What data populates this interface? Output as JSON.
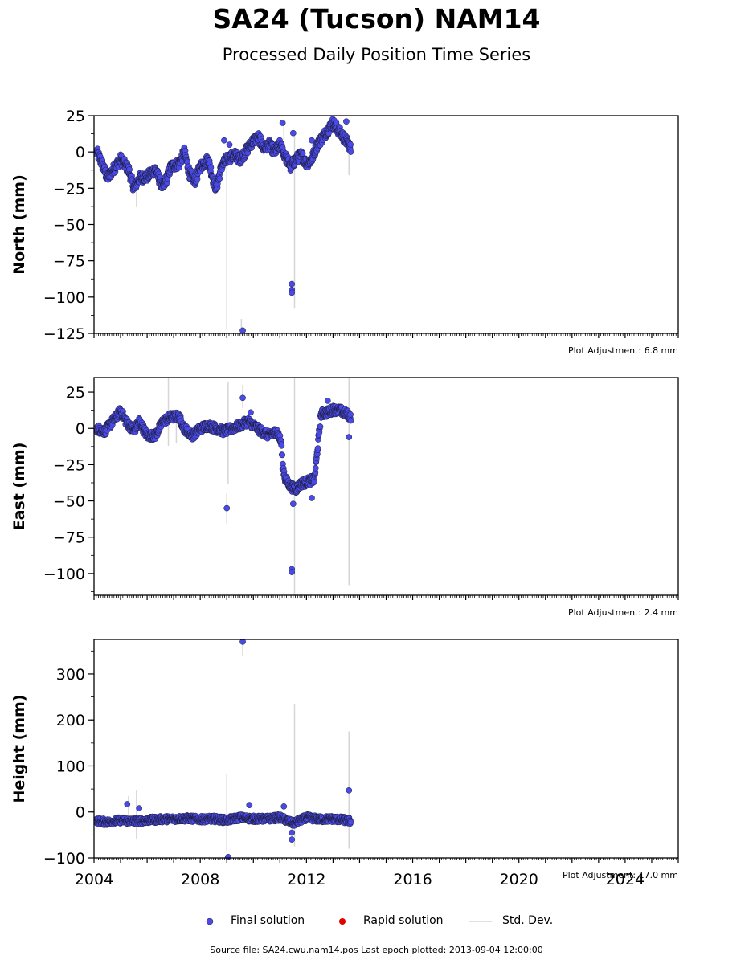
{
  "figure": {
    "title": "SA24 (Tucson) NAM14",
    "subtitle": "Processed Daily Position Time Series",
    "source_note": "Source file: SA24.cwu.nam14.pos  Last epoch plotted: 2013-09-04 12:00:00"
  },
  "legend": [
    {
      "label": "Final solution",
      "color": "#4a4ae8",
      "kind": "dot"
    },
    {
      "label": "Rapid solution",
      "color": "#e00000",
      "kind": "dot"
    },
    {
      "label": "Std. Dev.",
      "color": "#d6d6d6",
      "kind": "line"
    }
  ],
  "chart_data": [
    {
      "type": "scatter",
      "ylabel": "North (mm)",
      "xlabel": "",
      "xlim": [
        2004.0,
        2026.0
      ],
      "ylim": [
        -125,
        25
      ],
      "yticks": [
        25,
        0,
        -25,
        -50,
        -75,
        -100,
        -125
      ],
      "ytick_labels": [
        "25",
        "0",
        "−25",
        "−50",
        "−75",
        "−100",
        "−125"
      ],
      "adjustment_note": "Plot Adjustment: 6.8 mm",
      "trend": [
        [
          2004.1,
          0
        ],
        [
          2004.3,
          -8
        ],
        [
          2004.5,
          -18
        ],
        [
          2004.8,
          -10
        ],
        [
          2005.0,
          -5
        ],
        [
          2005.3,
          -12
        ],
        [
          2005.5,
          -25
        ],
        [
          2005.7,
          -18
        ],
        [
          2006.0,
          -17
        ],
        [
          2006.3,
          -12
        ],
        [
          2006.6,
          -25
        ],
        [
          2006.9,
          -10
        ],
        [
          2007.2,
          -8
        ],
        [
          2007.4,
          0
        ],
        [
          2007.6,
          -15
        ],
        [
          2007.8,
          -20
        ],
        [
          2008.0,
          -10
        ],
        [
          2008.3,
          -5
        ],
        [
          2008.5,
          -20
        ],
        [
          2008.6,
          -25
        ],
        [
          2008.8,
          -10
        ],
        [
          2009.0,
          -5
        ],
        [
          2009.3,
          -2
        ],
        [
          2009.5,
          -5
        ],
        [
          2009.7,
          0
        ],
        [
          2010.0,
          8
        ],
        [
          2010.2,
          10
        ],
        [
          2010.4,
          2
        ],
        [
          2010.6,
          5
        ],
        [
          2010.8,
          0
        ],
        [
          2011.0,
          5
        ],
        [
          2011.2,
          -3
        ],
        [
          2011.4,
          -10
        ],
        [
          2011.6,
          -5
        ],
        [
          2011.8,
          -2
        ],
        [
          2012.0,
          -8
        ],
        [
          2012.2,
          -5
        ],
        [
          2012.4,
          5
        ],
        [
          2012.6,
          10
        ],
        [
          2012.8,
          15
        ],
        [
          2013.0,
          20
        ],
        [
          2013.2,
          15
        ],
        [
          2013.4,
          10
        ],
        [
          2013.6,
          5
        ],
        [
          2013.68,
          1
        ]
      ],
      "outliers": [
        [
          2009.6,
          -123
        ],
        [
          2011.45,
          -91
        ],
        [
          2011.45,
          -95
        ],
        [
          2011.45,
          -97
        ],
        [
          2011.1,
          20
        ],
        [
          2008.9,
          8
        ],
        [
          2009.1,
          5
        ],
        [
          2012.2,
          8
        ],
        [
          2013.5,
          21
        ],
        [
          2011.5,
          13
        ]
      ],
      "stddev_bars": [
        [
          2009.0,
          -122,
          -5
        ],
        [
          2011.55,
          -108,
          12
        ],
        [
          2013.6,
          -16,
          8
        ],
        [
          2009.55,
          -126,
          -115
        ],
        [
          2005.6,
          -38,
          -18
        ],
        [
          2011.15,
          -5,
          20
        ]
      ],
      "spread": 3.5
    },
    {
      "type": "scatter",
      "ylabel": "East (mm)",
      "xlabel": "",
      "xlim": [
        2004.0,
        2026.0
      ],
      "ylim": [
        -115,
        35
      ],
      "yticks": [
        25,
        0,
        -25,
        -50,
        -75,
        -100
      ],
      "ytick_labels": [
        "25",
        "0",
        "−25",
        "−50",
        "−75",
        "−100"
      ],
      "adjustment_note": "Plot Adjustment: 2.4 mm",
      "trend": [
        [
          2004.1,
          0
        ],
        [
          2004.4,
          -2
        ],
        [
          2004.7,
          5
        ],
        [
          2005.0,
          12
        ],
        [
          2005.2,
          5
        ],
        [
          2005.5,
          -2
        ],
        [
          2005.7,
          5
        ],
        [
          2006.0,
          -5
        ],
        [
          2006.3,
          -5
        ],
        [
          2006.6,
          5
        ],
        [
          2006.9,
          8
        ],
        [
          2007.2,
          8
        ],
        [
          2007.4,
          0
        ],
        [
          2007.7,
          -5
        ],
        [
          2008.0,
          0
        ],
        [
          2008.3,
          2
        ],
        [
          2008.6,
          0
        ],
        [
          2008.9,
          -2
        ],
        [
          2009.2,
          0
        ],
        [
          2009.5,
          2
        ],
        [
          2009.8,
          5
        ],
        [
          2010.0,
          2
        ],
        [
          2010.3,
          -2
        ],
        [
          2010.6,
          -5
        ],
        [
          2010.9,
          -2
        ],
        [
          2011.05,
          -10
        ],
        [
          2011.1,
          -25
        ],
        [
          2011.2,
          -35
        ],
        [
          2011.4,
          -40
        ],
        [
          2011.6,
          -42
        ],
        [
          2011.8,
          -38
        ],
        [
          2012.0,
          -37
        ],
        [
          2012.3,
          -35
        ],
        [
          2012.55,
          10
        ],
        [
          2012.8,
          11
        ],
        [
          2013.0,
          13
        ],
        [
          2013.3,
          12
        ],
        [
          2013.5,
          10
        ],
        [
          2013.68,
          8
        ]
      ],
      "outliers": [
        [
          2009.0,
          -55
        ],
        [
          2009.6,
          21
        ],
        [
          2011.45,
          -97
        ],
        [
          2011.45,
          -99
        ],
        [
          2013.6,
          -6
        ],
        [
          2012.2,
          -48
        ],
        [
          2012.8,
          19
        ],
        [
          2009.9,
          11
        ],
        [
          2011.5,
          -52
        ]
      ],
      "stddev_bars": [
        [
          2009.0,
          -66,
          -45
        ],
        [
          2009.05,
          -38,
          32
        ],
        [
          2011.55,
          -115,
          35
        ],
        [
          2013.6,
          -108,
          35
        ],
        [
          2009.6,
          14,
          30
        ],
        [
          2006.8,
          -12,
          35
        ],
        [
          2007.1,
          -10,
          10
        ]
      ],
      "spread": 3.0
    },
    {
      "type": "scatter",
      "ylabel": "Height (mm)",
      "xlabel": "",
      "xlim": [
        2004.0,
        2026.0
      ],
      "ylim": [
        -100,
        375
      ],
      "yticks": [
        300,
        200,
        100,
        0,
        -100
      ],
      "ytick_labels": [
        "300",
        "200",
        "100",
        "0",
        "−100"
      ],
      "xticks": [
        2004,
        2008,
        2012,
        2016,
        2020,
        2024
      ],
      "xtick_labels": [
        "2004",
        "2008",
        "2012",
        "2016",
        "2020",
        "2024"
      ],
      "adjustment_note": "Plot Adjustment: 17.0 mm",
      "trend": [
        [
          2004.1,
          -20
        ],
        [
          2004.5,
          -22
        ],
        [
          2005.0,
          -18
        ],
        [
          2005.5,
          -20
        ],
        [
          2006.0,
          -18
        ],
        [
          2006.5,
          -16
        ],
        [
          2007.0,
          -15
        ],
        [
          2007.5,
          -14
        ],
        [
          2008.0,
          -16
        ],
        [
          2008.5,
          -15
        ],
        [
          2009.0,
          -18
        ],
        [
          2009.5,
          -12
        ],
        [
          2010.0,
          -15
        ],
        [
          2010.5,
          -15
        ],
        [
          2011.0,
          -12
        ],
        [
          2011.5,
          -25
        ],
        [
          2012.0,
          -12
        ],
        [
          2012.5,
          -16
        ],
        [
          2013.0,
          -15
        ],
        [
          2013.5,
          -18
        ],
        [
          2013.68,
          -20
        ]
      ],
      "outliers": [
        [
          2009.6,
          370
        ],
        [
          2013.6,
          47
        ],
        [
          2011.45,
          -45
        ],
        [
          2011.45,
          -60
        ],
        [
          2009.05,
          -98
        ],
        [
          2005.25,
          17
        ],
        [
          2009.85,
          15
        ],
        [
          2011.15,
          12
        ],
        [
          2005.7,
          8
        ]
      ],
      "stddev_bars": [
        [
          2009.0,
          -85,
          82
        ],
        [
          2011.55,
          -75,
          235
        ],
        [
          2013.6,
          -80,
          175
        ],
        [
          2009.6,
          340,
          375
        ],
        [
          2005.6,
          -58,
          48
        ],
        [
          2005.3,
          -30,
          35
        ]
      ],
      "spread": 7
    }
  ]
}
